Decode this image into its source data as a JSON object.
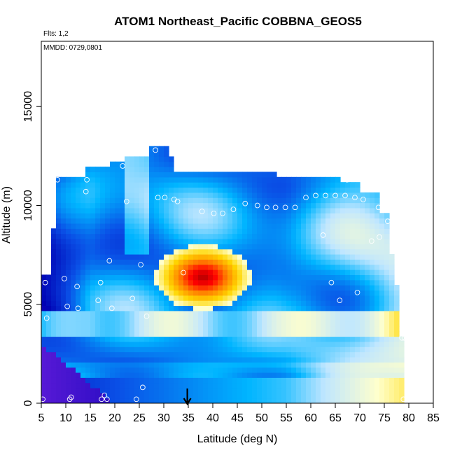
{
  "chart_data": {
    "type": "heatmap",
    "title": "ATOM1 Northeast_Pacific COBBNA_GEOS5",
    "annotations": {
      "flights": "Flts: 1,2",
      "dates": "MMDD: 0729,0801"
    },
    "xlabel": "Latitude (deg N)",
    "ylabel": "Altitude (m)",
    "xlim": [
      5,
      85
    ],
    "ylim": [
      0,
      18300
    ],
    "x_ticks": [
      "5",
      "10",
      "15",
      "20",
      "25",
      "30",
      "35",
      "40",
      "45",
      "50",
      "55",
      "60",
      "65",
      "70",
      "75",
      "80",
      "85"
    ],
    "y_ticks": [
      "0",
      "5000",
      "10000",
      "15000"
    ],
    "colorscale": [
      "#6a1fdd",
      "#0000b3",
      "#0a4fe6",
      "#00b5ff",
      "#bfe6ff",
      "#ffffcc",
      "#ffd700",
      "#ff8000",
      "#ff0000",
      "#b30000"
    ],
    "data_extent_lat": [
      5,
      79
    ],
    "data_extent_alt": [
      0,
      12800
    ],
    "hotspot_lat": 38,
    "hotspot_alt": 6500,
    "arrow_latitude": 34.8,
    "sample_points": [
      {
        "x": 5.3,
        "y": 200
      },
      {
        "x": 5.8,
        "y": 6100
      },
      {
        "x": 6.1,
        "y": 4300
      },
      {
        "x": 7.4,
        "y": 10500
      },
      {
        "x": 8.3,
        "y": 11300
      },
      {
        "x": 9.7,
        "y": 6300
      },
      {
        "x": 10.3,
        "y": 4900
      },
      {
        "x": 10.8,
        "y": 200
      },
      {
        "x": 11.1,
        "y": 300
      },
      {
        "x": 12.3,
        "y": 5900
      },
      {
        "x": 12.5,
        "y": 4800
      },
      {
        "x": 14.1,
        "y": 10700
      },
      {
        "x": 14.3,
        "y": 11300
      },
      {
        "x": 16.6,
        "y": 5200
      },
      {
        "x": 17.1,
        "y": 6100
      },
      {
        "x": 17.3,
        "y": 200
      },
      {
        "x": 17.9,
        "y": 400
      },
      {
        "x": 18.4,
        "y": 200
      },
      {
        "x": 18.9,
        "y": 7200
      },
      {
        "x": 19.4,
        "y": 4800
      },
      {
        "x": 21.6,
        "y": 12000
      },
      {
        "x": 22.4,
        "y": 10200
      },
      {
        "x": 23.6,
        "y": 5300
      },
      {
        "x": 24.4,
        "y": 200
      },
      {
        "x": 25.3,
        "y": 7000
      },
      {
        "x": 25.7,
        "y": 800
      },
      {
        "x": 26.5,
        "y": 4400
      },
      {
        "x": 28.3,
        "y": 12800
      },
      {
        "x": 28.8,
        "y": 10400
      },
      {
        "x": 30.2,
        "y": 10400
      },
      {
        "x": 32.1,
        "y": 10300
      },
      {
        "x": 32.8,
        "y": 10200
      },
      {
        "x": 34.0,
        "y": 6600
      },
      {
        "x": 37.8,
        "y": 9700
      },
      {
        "x": 40.2,
        "y": 9600
      },
      {
        "x": 42.0,
        "y": 9600
      },
      {
        "x": 44.2,
        "y": 9800
      },
      {
        "x": 46.6,
        "y": 10100
      },
      {
        "x": 49.1,
        "y": 10000
      },
      {
        "x": 51.0,
        "y": 9900
      },
      {
        "x": 52.8,
        "y": 9900
      },
      {
        "x": 54.8,
        "y": 9900
      },
      {
        "x": 56.8,
        "y": 9900
      },
      {
        "x": 59.0,
        "y": 10400
      },
      {
        "x": 61.0,
        "y": 10500
      },
      {
        "x": 62.5,
        "y": 8500
      },
      {
        "x": 63.0,
        "y": 10500
      },
      {
        "x": 64.2,
        "y": 6100
      },
      {
        "x": 65.0,
        "y": 10500
      },
      {
        "x": 65.9,
        "y": 5200
      },
      {
        "x": 67.0,
        "y": 10500
      },
      {
        "x": 67.4,
        "y": 11300
      },
      {
        "x": 69.0,
        "y": 10400
      },
      {
        "x": 69.5,
        "y": 5600
      },
      {
        "x": 70.7,
        "y": 10300
      },
      {
        "x": 72.4,
        "y": 8200
      },
      {
        "x": 73.8,
        "y": 9900
      },
      {
        "x": 74.0,
        "y": 8400
      },
      {
        "x": 75.8,
        "y": 9800
      },
      {
        "x": 75.7,
        "y": 9200
      },
      {
        "x": 78.6,
        "y": 3300
      },
      {
        "x": 79.1,
        "y": 3300
      },
      {
        "x": 78.9,
        "y": 200
      }
    ]
  }
}
